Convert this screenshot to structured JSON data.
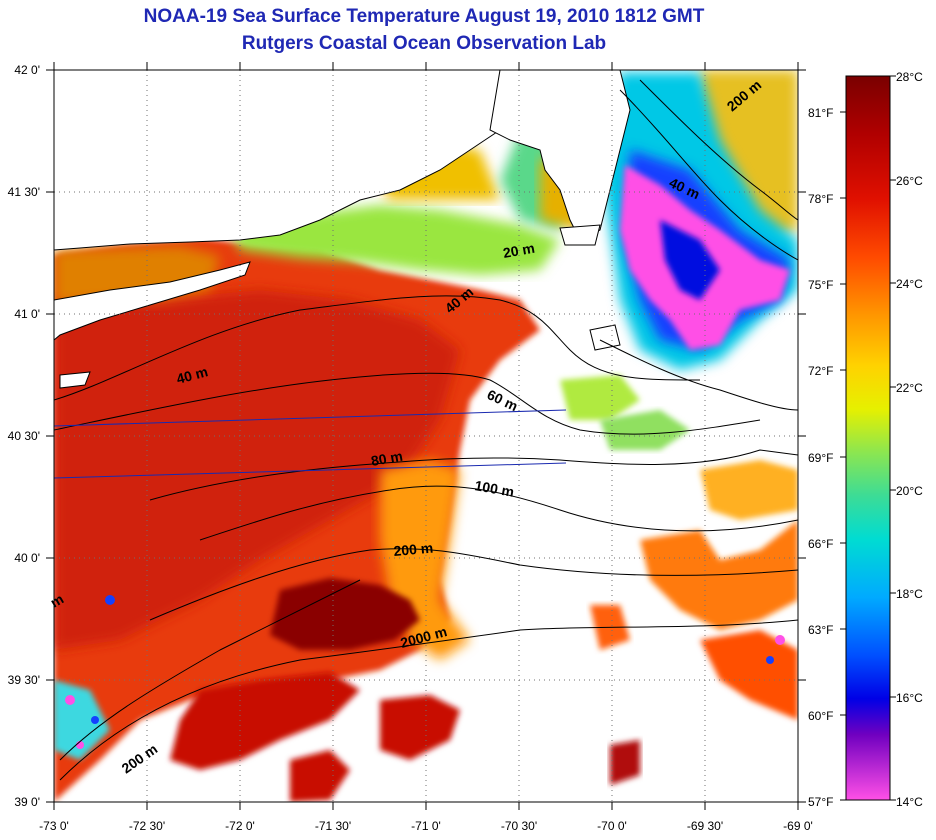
{
  "title": {
    "line1": "NOAA-19 Sea Surface Temperature August 19, 2010 1812 GMT",
    "line2": "Rutgers Coastal Ocean Observation Lab"
  },
  "axes": {
    "lon_ticks": [
      "-73 0'",
      "-72 30'",
      "-72 0'",
      "-71 30'",
      "-71 0'",
      "-70 30'",
      "-70 0'",
      "-69 30'",
      "-69 0'"
    ],
    "lat_ticks": [
      "42 0'",
      "41 30'",
      "41 0'",
      "40 30'",
      "40 0'",
      "39 30'",
      "39 0'"
    ],
    "lon_range": [
      -73,
      -69
    ],
    "lat_range": [
      39,
      42
    ],
    "grid": "dotted"
  },
  "contour_labels": [
    "200 m",
    "40 m",
    "20 m",
    "40 m",
    "40 m",
    "60 m",
    "80 m",
    "100 m",
    "200 m",
    "2000 m",
    "m",
    "200 m"
  ],
  "colorbar": {
    "celsius": [
      "28°C",
      "26°C",
      "24°C",
      "22°C",
      "20°C",
      "18°C",
      "16°C",
      "14°C"
    ],
    "fahrenheit": [
      "81°F",
      "78°F",
      "75°F",
      "72°F",
      "69°F",
      "66°F",
      "63°F",
      "60°F",
      "57°F"
    ],
    "range_c": [
      14,
      28
    ],
    "colors": [
      "#7a0000",
      "#c80000",
      "#ff3a00",
      "#ff8c00",
      "#ffd200",
      "#c8f000",
      "#5ae65a",
      "#00e6c8",
      "#00b4ff",
      "#0050ff",
      "#0000e6",
      "#7000c0",
      "#ff50e6"
    ]
  },
  "land_color": "#ffffff",
  "coast_color": "#000000"
}
